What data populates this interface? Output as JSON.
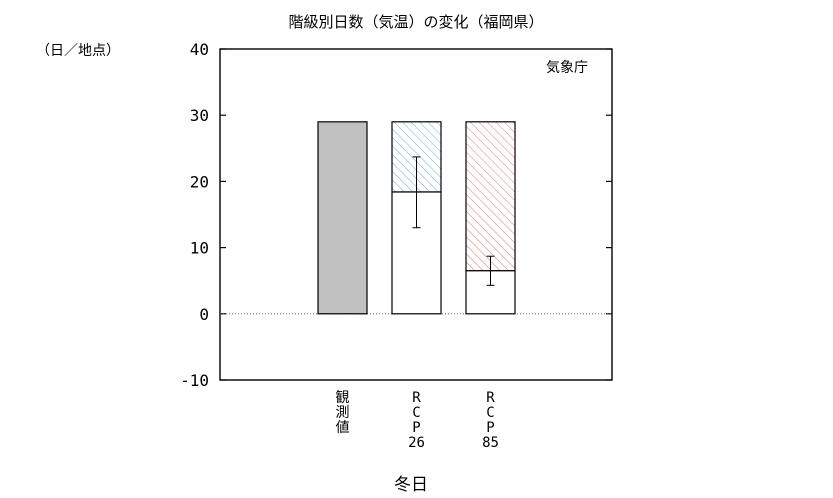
{
  "chart_data": {
    "type": "bar",
    "title": "階級別日数（気温）の変化（福岡県）",
    "ylabel": "（日／地点）",
    "xlabel": "冬日",
    "source_note": "気象庁",
    "ylim": [
      -10,
      40
    ],
    "yticks": [
      "-10",
      "0",
      "10",
      "20",
      "30",
      "40"
    ],
    "zero_line": "dotted",
    "categories": [
      {
        "label_lines": [
          "観",
          "測",
          "値"
        ]
      },
      {
        "label_lines": [
          "R",
          "C",
          "P",
          "26"
        ]
      },
      {
        "label_lines": [
          "R",
          "C",
          "P",
          "85"
        ]
      }
    ],
    "bars": [
      {
        "category_index": 0,
        "observed": 29.0,
        "fill": "#c0c0c0"
      },
      {
        "category_index": 1,
        "projected": 18.4,
        "change": -10.6,
        "error_low": 13.0,
        "error_high": 23.7,
        "hatch_color": "#6ab0d8"
      },
      {
        "category_index": 2,
        "projected": 6.5,
        "change": -22.5,
        "error_low": 4.3,
        "error_high": 8.7,
        "hatch_color": "#e07a6a"
      }
    ]
  }
}
